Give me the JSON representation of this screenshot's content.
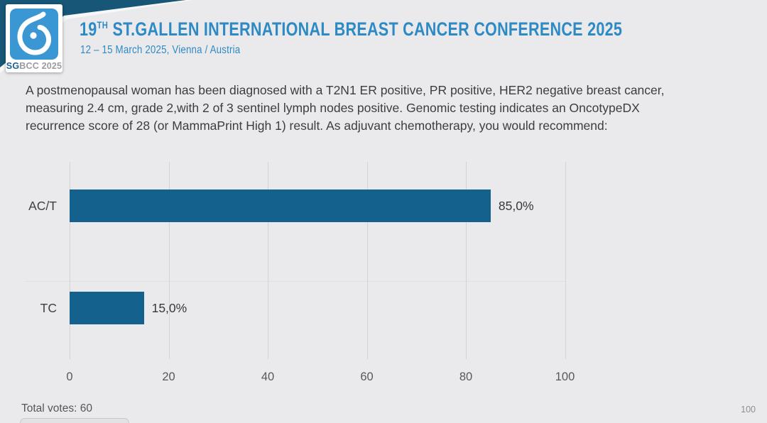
{
  "header": {
    "logo": {
      "icon_name": "sgbcc-breast-logo-icon",
      "sg": "SG",
      "rest": "BCC 2025",
      "square_color": "#3b97d3"
    },
    "title_num": "19",
    "title_sup": "TH",
    "title_rest": " ST.GALLEN INTERNATIONAL BREAST CANCER CONFERENCE 2025",
    "subtitle": "12 – 15 March 2025, Vienna / Austria",
    "band_color": "#175677",
    "title_color": "#2e8ac4"
  },
  "question": {
    "text": "A postmenopausal woman has been diagnosed with a T2N1 ER positive, PR positive, HER2 negative breast cancer, measuring 2.4 cm, grade 2,with 2 of 3 sentinel lymph nodes positive.  Genomic testing indicates an OncotypeDX recurrence score of 28 (or MammaPrint High 1) result.  As adjuvant chemotherapy, you would recommend:"
  },
  "chart_data": {
    "type": "bar",
    "orientation": "horizontal",
    "categories": [
      "AC/T",
      "TC"
    ],
    "values": [
      85.0,
      15.0
    ],
    "value_labels": [
      "85,0%",
      "15,0%"
    ],
    "x_ticks": [
      0,
      20,
      40,
      60,
      80,
      100
    ],
    "xlim": [
      0,
      100
    ],
    "bar_color": "#15618e",
    "grid": "vertical-gridlines-on",
    "legend": "none",
    "title": "",
    "xlabel": "",
    "ylabel": ""
  },
  "footer": {
    "total_votes_label": "Total votes: 60",
    "page_number": "100"
  },
  "colors": {
    "background": "#eaeaec",
    "gridline": "#d4d4d6",
    "question_text": "#3d3d3f"
  }
}
